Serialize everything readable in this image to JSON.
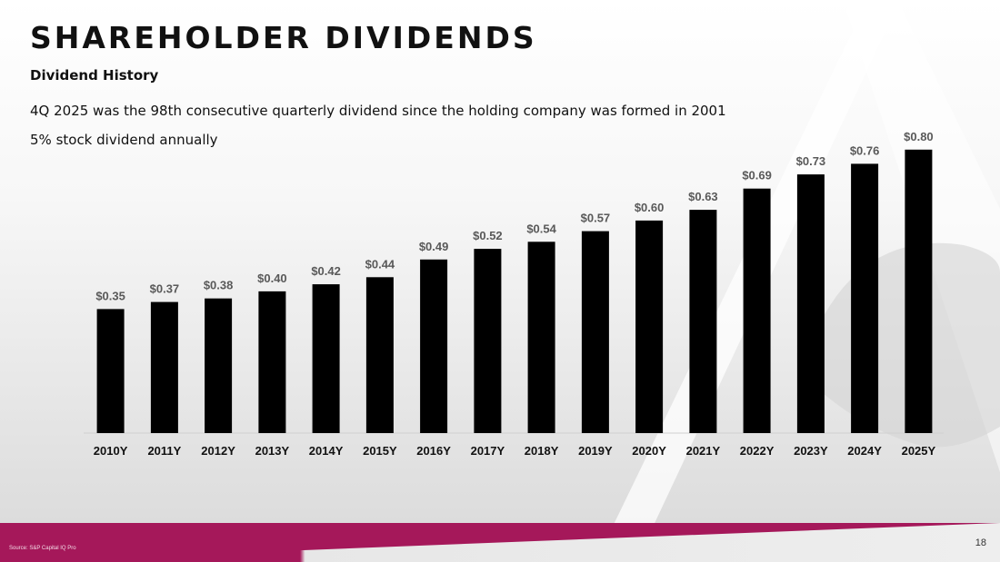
{
  "slide": {
    "title": "SHAREHOLDER DIVIDENDS",
    "subtitle": "Dividend History",
    "note1": "4Q 2025 was the 98th consecutive quarterly dividend since the holding company was formed in 2001",
    "note2": "5% stock dividend annually",
    "source": "Source: S&P Capital IQ Pro",
    "page_number": "18"
  },
  "colors": {
    "bar": "#000000",
    "label": "#595959",
    "accent": "#a5185a",
    "logo": "#ffffff"
  },
  "chart_data": {
    "type": "bar",
    "title": "",
    "xlabel": "",
    "ylabel": "",
    "ylim": [
      0,
      0.82
    ],
    "grid": false,
    "categories": [
      "2010Y",
      "2011Y",
      "2012Y",
      "2013Y",
      "2014Y",
      "2015Y",
      "2016Y",
      "2017Y",
      "2018Y",
      "2019Y",
      "2020Y",
      "2021Y",
      "2022Y",
      "2023Y",
      "2024Y",
      "2025Y"
    ],
    "values": [
      0.35,
      0.37,
      0.38,
      0.4,
      0.42,
      0.44,
      0.49,
      0.52,
      0.54,
      0.57,
      0.6,
      0.63,
      0.69,
      0.73,
      0.76,
      0.8
    ],
    "data_labels": [
      "$0.35",
      "$0.37",
      "$0.38",
      "$0.40",
      "$0.42",
      "$0.44",
      "$0.49",
      "$0.52",
      "$0.54",
      "$0.57",
      "$0.60",
      "$0.63",
      "$0.69",
      "$0.73",
      "$0.76",
      "$0.80"
    ]
  }
}
